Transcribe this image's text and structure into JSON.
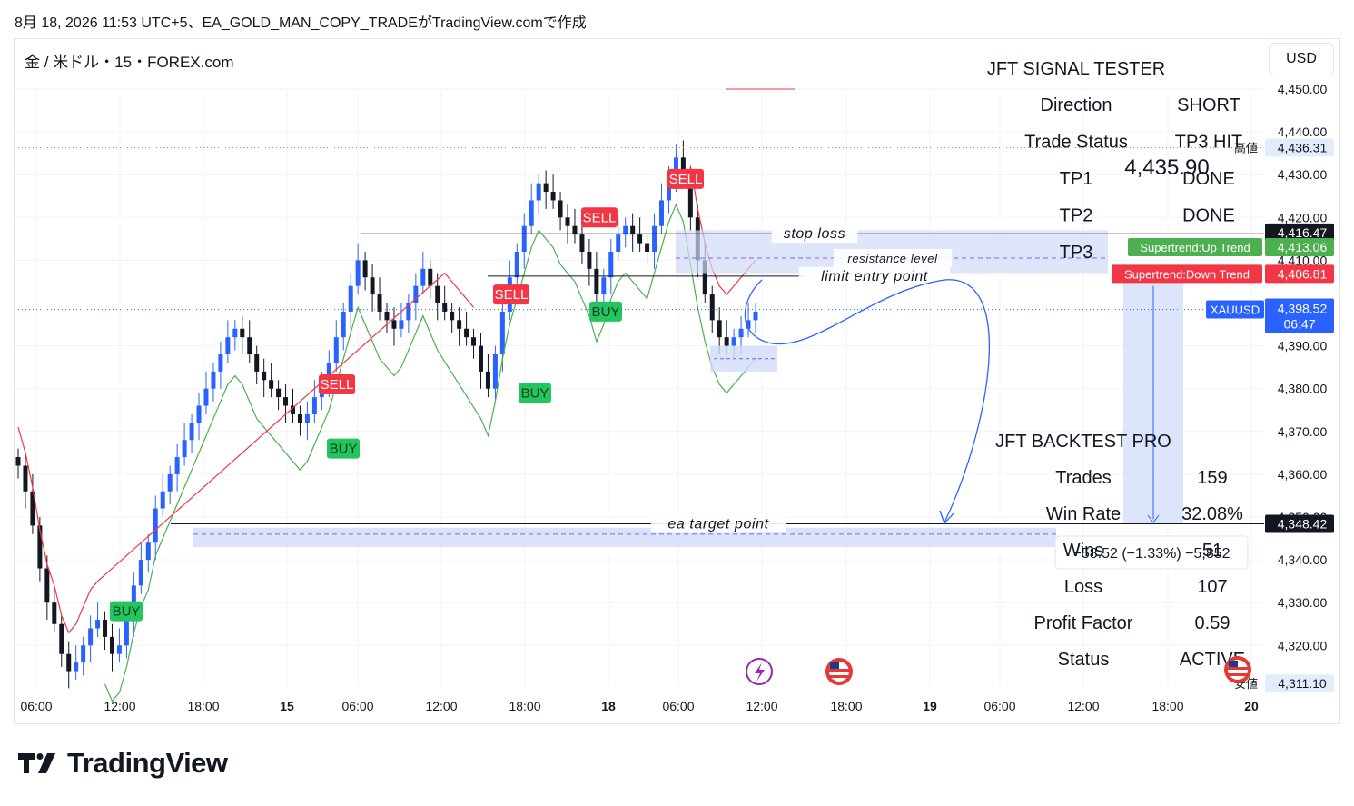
{
  "header": {
    "caption": "8月 18, 2026 11:53 UTC+5、EA_GOLD_MAN_COPY_TRADEがTradingView.comで作成"
  },
  "symbol": {
    "title": "金 / 米ドル・15・FOREX.com"
  },
  "currency_button": {
    "label": "USD"
  },
  "brand": {
    "name": "TradingView",
    "icon": "tradingview-logo-icon"
  },
  "colors": {
    "up_candle": "#2962ff",
    "down_candle": "#131722",
    "uptrend": "#4caf50",
    "downtrend": "#f23645",
    "box": "#d1dcf8",
    "price_tag": "#2962ff"
  },
  "chart_data": {
    "type": "candlestick",
    "title": "",
    "price_axis": {
      "ticks": [
        "4,450.00",
        "4,440.00",
        "4,430.00",
        "4,420.00",
        "4,410.00",
        "4,400.00",
        "4,390.00",
        "4,380.00",
        "4,370.00",
        "4,360.00",
        "4,350.00",
        "4,340.00",
        "4,330.00",
        "4,320.00"
      ],
      "range": [
        4308,
        4458
      ]
    },
    "time_axis": {
      "ticks": [
        "06:00",
        "12:00",
        "18:00",
        "15",
        "06:00",
        "12:00",
        "18:00",
        "18",
        "06:00",
        "12:00",
        "18:00",
        "19",
        "06:00",
        "12:00",
        "18:00",
        "20"
      ]
    },
    "close_series": [
      4362,
      4356,
      4348,
      4338,
      4330,
      4325,
      4318,
      4314,
      4316,
      4320,
      4324,
      4326,
      4322,
      4318,
      4320,
      4326,
      4334,
      4340,
      4344,
      4352,
      4356,
      4360,
      4364,
      4368,
      4372,
      4376,
      4380,
      4384,
      4388,
      4392,
      4394,
      4392,
      4388,
      4384,
      4382,
      4380,
      4378,
      4376,
      4374,
      4372,
      4374,
      4378,
      4382,
      4386,
      4392,
      4398,
      4404,
      4410,
      4406,
      4402,
      4398,
      4396,
      4394,
      4396,
      4400,
      4404,
      4408,
      4404,
      4400,
      4398,
      4396,
      4394,
      4392,
      4390,
      4384,
      4380,
      4388,
      4398,
      4406,
      4412,
      4418,
      4424,
      4428,
      4426,
      4424,
      4420,
      4418,
      4416,
      4412,
      4408,
      4402,
      4406,
      4412,
      4416,
      4418,
      4416,
      4414,
      4412,
      4418,
      4424,
      4430,
      4434,
      4430,
      4420,
      4410,
      4402,
      4396,
      4392,
      4390,
      4392,
      4394,
      4396,
      4398
    ],
    "signals": [
      {
        "label": "BUY",
        "price": 4328
      },
      {
        "label": "SELL",
        "price": 4381
      },
      {
        "label": "BUY",
        "price": 4366
      },
      {
        "label": "BUY",
        "price": 4379
      },
      {
        "label": "SELL",
        "price": 4402
      },
      {
        "label": "SELL",
        "price": 4420
      },
      {
        "label": "BUY",
        "price": 4398
      },
      {
        "label": "SELL",
        "price": 4429
      }
    ],
    "levels": [
      {
        "label": "stop loss",
        "price": 4416.2
      },
      {
        "label": "resistance level",
        "price": 4410.5
      },
      {
        "label": "limit entry point",
        "price": 4406.3
      },
      {
        "label": "ea target point",
        "price": 4348.42
      }
    ],
    "price_labels": [
      {
        "text": "4,436.31",
        "note": "高値",
        "price": 4436.31
      },
      {
        "text": "4,416.47",
        "price": 4416.47
      },
      {
        "text": "4,413.06",
        "note": "Supertrend:Up Trend",
        "price": 4413.06
      },
      {
        "text": "4,406.81",
        "note": "Supertrend:Down Trend",
        "price": 4406.81
      },
      {
        "text": "4,398.52",
        "sub": "06:47",
        "note": "XAUUSD",
        "price": 4398.52
      },
      {
        "text": "4,348.42",
        "price": 4348.42
      },
      {
        "text": "4,311.10",
        "note": "安値",
        "price": 4311.1
      }
    ],
    "crosshair": {
      "price": "4,435.90",
      "measure": "−58.52 (−1.33%) −5,852"
    },
    "signal_tester": {
      "title": "JFT SIGNAL TESTER",
      "rows": [
        {
          "k": "Direction",
          "v": "SHORT"
        },
        {
          "k": "Trade Status",
          "v": "TP3 HIT"
        },
        {
          "k": "TP1",
          "v": "DONE"
        },
        {
          "k": "TP2",
          "v": "DONE"
        },
        {
          "k": "TP3",
          "v": ""
        }
      ]
    },
    "backtest": {
      "title": "JFT BACKTEST PRO",
      "rows": [
        {
          "k": "Trades",
          "v": "159"
        },
        {
          "k": "Win Rate",
          "v": "32.08%"
        },
        {
          "k": "Wins",
          "v": "51"
        },
        {
          "k": "Loss",
          "v": "107"
        },
        {
          "k": "Profit Factor",
          "v": "0.59"
        },
        {
          "k": "Status",
          "v": "ACTIVE"
        }
      ]
    }
  }
}
